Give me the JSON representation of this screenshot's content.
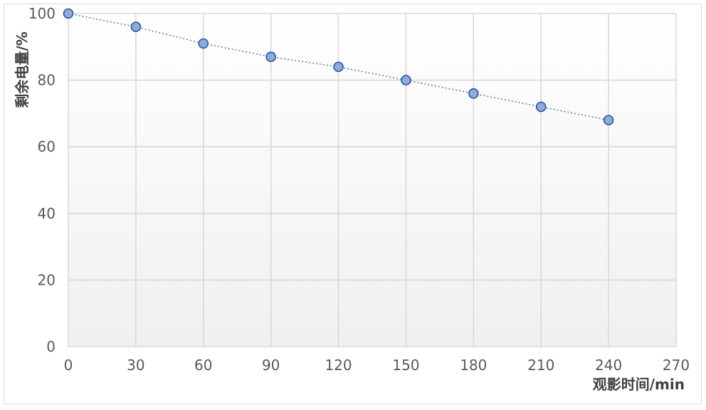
{
  "chart_data": {
    "type": "scatter",
    "title": "",
    "xlabel": "观影时间/min",
    "ylabel": "剩余电量/%",
    "xlim": [
      0,
      270
    ],
    "ylim": [
      0,
      100
    ],
    "xticks": [
      "0",
      "30",
      "60",
      "90",
      "120",
      "150",
      "180",
      "210",
      "240",
      "270"
    ],
    "yticks": [
      "0",
      "20",
      "40",
      "60",
      "80",
      "100"
    ],
    "grid": true,
    "legend": "none",
    "x": [
      0,
      30,
      60,
      90,
      120,
      150,
      180,
      210,
      240
    ],
    "y": [
      100,
      96,
      91,
      87,
      84,
      80,
      76,
      72,
      68
    ],
    "colors": {
      "marker_fill": "#8faadc",
      "marker_edge": "#2f5597",
      "line": "#4472c4",
      "plot_bg_top": "#ffffff",
      "plot_bg_bottom": "#f0f0f0"
    }
  }
}
